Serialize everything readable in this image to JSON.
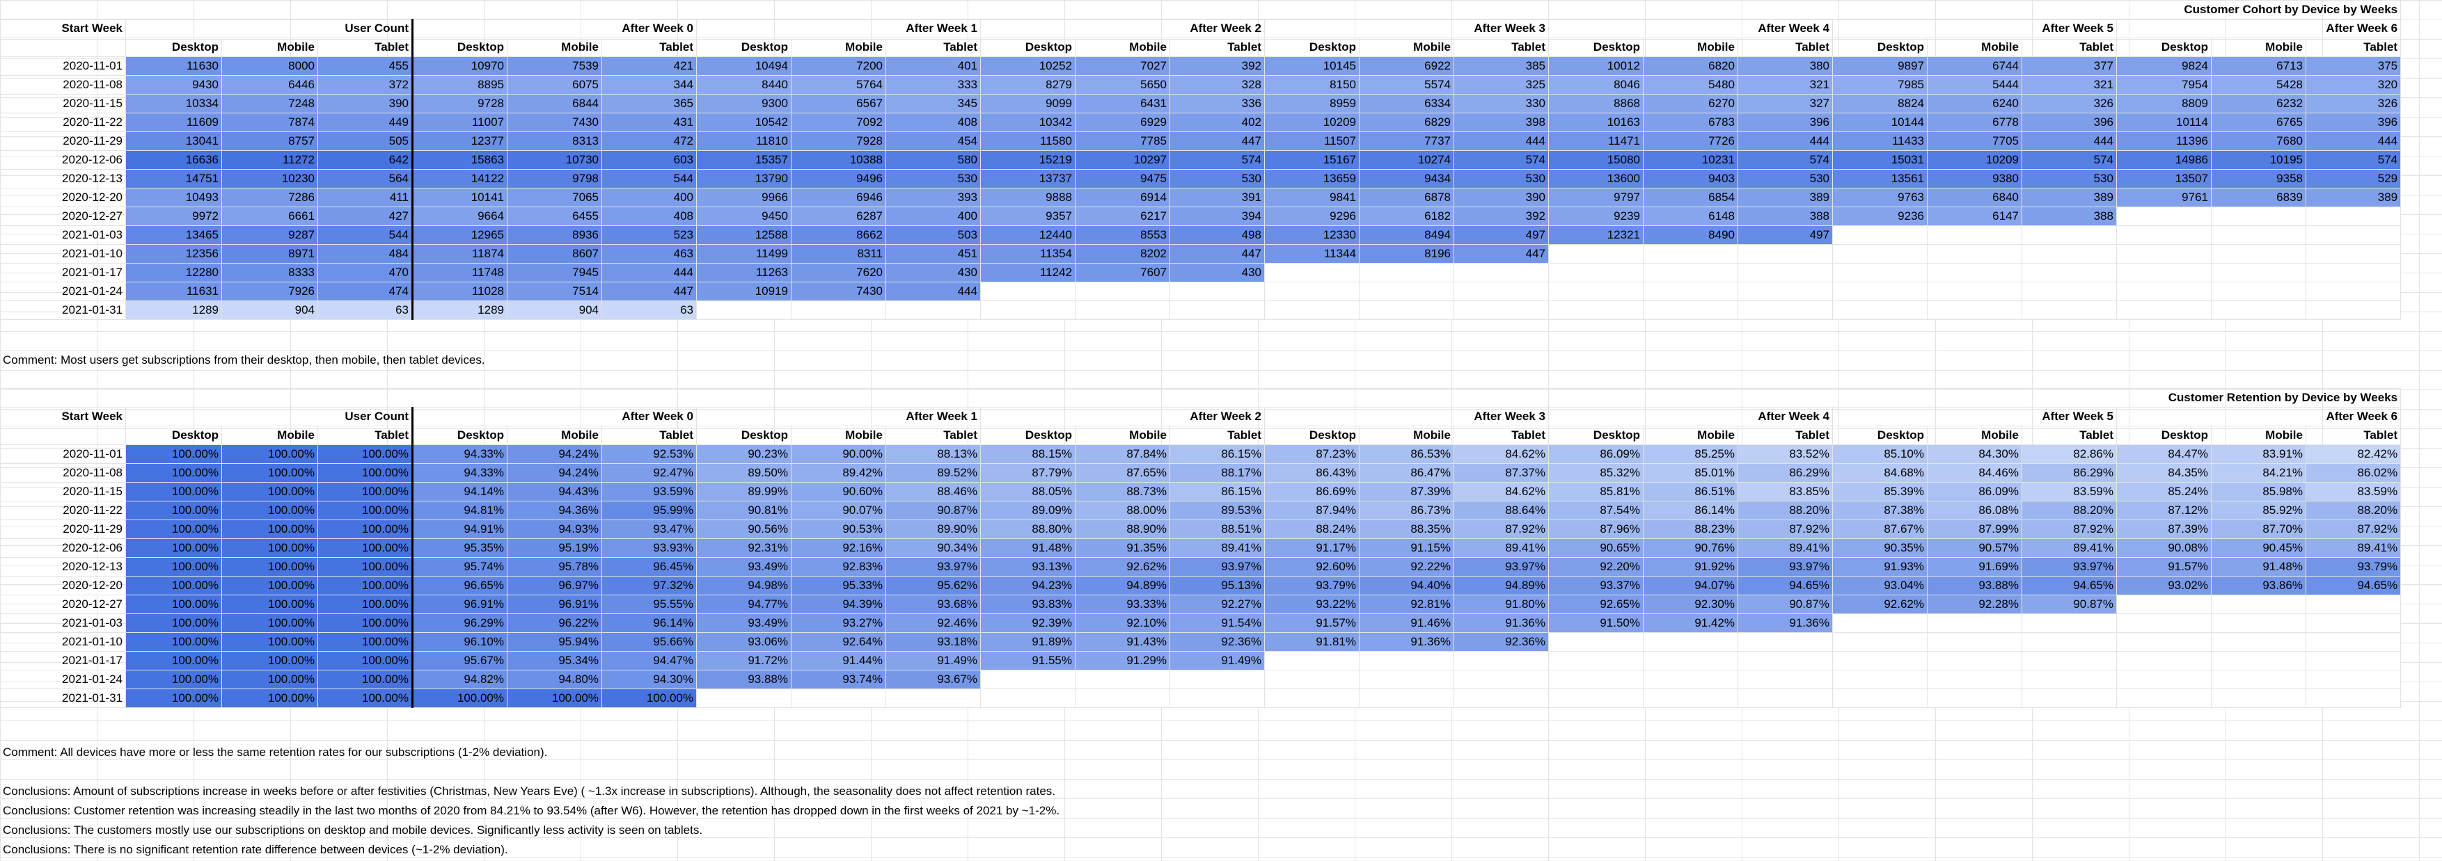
{
  "cohort": {
    "title": "Customer Cohort by Device by Weeks",
    "group_headers": [
      "Start Week",
      "User Count",
      "After Week 0",
      "After Week 1",
      "After Week 2",
      "After Week 3",
      "After Week 4",
      "After Week 5",
      "After Week 6"
    ],
    "device_headers": [
      "Desktop",
      "Mobile",
      "Tablet"
    ],
    "rows": [
      {
        "week": "2020-11-01",
        "values": [
          "11630",
          "8000",
          "455",
          "10970",
          "7539",
          "421",
          "10494",
          "7200",
          "401",
          "10252",
          "7027",
          "392",
          "10145",
          "6922",
          "385",
          "10012",
          "6820",
          "380",
          "9897",
          "6744",
          "377",
          "9824",
          "6713",
          "375"
        ]
      },
      {
        "week": "2020-11-08",
        "values": [
          "9430",
          "6446",
          "372",
          "8895",
          "6075",
          "344",
          "8440",
          "5764",
          "333",
          "8279",
          "5650",
          "328",
          "8150",
          "5574",
          "325",
          "8046",
          "5480",
          "321",
          "7985",
          "5444",
          "321",
          "7954",
          "5428",
          "320"
        ]
      },
      {
        "week": "2020-11-15",
        "values": [
          "10334",
          "7248",
          "390",
          "9728",
          "6844",
          "365",
          "9300",
          "6567",
          "345",
          "9099",
          "6431",
          "336",
          "8959",
          "6334",
          "330",
          "8868",
          "6270",
          "327",
          "8824",
          "6240",
          "326",
          "8809",
          "6232",
          "326"
        ]
      },
      {
        "week": "2020-11-22",
        "values": [
          "11609",
          "7874",
          "449",
          "11007",
          "7430",
          "431",
          "10542",
          "7092",
          "408",
          "10342",
          "6929",
          "402",
          "10209",
          "6829",
          "398",
          "10163",
          "6783",
          "396",
          "10144",
          "6778",
          "396",
          "10114",
          "6765",
          "396"
        ]
      },
      {
        "week": "2020-11-29",
        "values": [
          "13041",
          "8757",
          "505",
          "12377",
          "8313",
          "472",
          "11810",
          "7928",
          "454",
          "11580",
          "7785",
          "447",
          "11507",
          "7737",
          "444",
          "11471",
          "7726",
          "444",
          "11433",
          "7705",
          "444",
          "11396",
          "7680",
          "444"
        ]
      },
      {
        "week": "2020-12-06",
        "values": [
          "16636",
          "11272",
          "642",
          "15863",
          "10730",
          "603",
          "15357",
          "10388",
          "580",
          "15219",
          "10297",
          "574",
          "15167",
          "10274",
          "574",
          "15080",
          "10231",
          "574",
          "15031",
          "10209",
          "574",
          "14986",
          "10195",
          "574"
        ]
      },
      {
        "week": "2020-12-13",
        "values": [
          "14751",
          "10230",
          "564",
          "14122",
          "9798",
          "544",
          "13790",
          "9496",
          "530",
          "13737",
          "9475",
          "530",
          "13659",
          "9434",
          "530",
          "13600",
          "9403",
          "530",
          "13561",
          "9380",
          "530",
          "13507",
          "9358",
          "529"
        ]
      },
      {
        "week": "2020-12-20",
        "values": [
          "10493",
          "7286",
          "411",
          "10141",
          "7065",
          "400",
          "9966",
          "6946",
          "393",
          "9888",
          "6914",
          "391",
          "9841",
          "6878",
          "390",
          "9797",
          "6854",
          "389",
          "9763",
          "6840",
          "389",
          "9761",
          "6839",
          "389"
        ]
      },
      {
        "week": "2020-12-27",
        "values": [
          "9972",
          "6661",
          "427",
          "9664",
          "6455",
          "408",
          "9450",
          "6287",
          "400",
          "9357",
          "6217",
          "394",
          "9296",
          "6182",
          "392",
          "9239",
          "6148",
          "388",
          "9236",
          "6147",
          "388",
          "",
          "",
          ""
        ]
      },
      {
        "week": "2021-01-03",
        "values": [
          "13465",
          "9287",
          "544",
          "12965",
          "8936",
          "523",
          "12588",
          "8662",
          "503",
          "12440",
          "8553",
          "498",
          "12330",
          "8494",
          "497",
          "12321",
          "8490",
          "497",
          "",
          "",
          "",
          "",
          "",
          ""
        ]
      },
      {
        "week": "2021-01-10",
        "values": [
          "12356",
          "8971",
          "484",
          "11874",
          "8607",
          "463",
          "11499",
          "8311",
          "451",
          "11354",
          "8202",
          "447",
          "11344",
          "8196",
          "447",
          "",
          "",
          "",
          "",
          "",
          "",
          "",
          "",
          ""
        ]
      },
      {
        "week": "2021-01-17",
        "values": [
          "12280",
          "8333",
          "470",
          "11748",
          "7945",
          "444",
          "11263",
          "7620",
          "430",
          "11242",
          "7607",
          "430",
          "",
          "",
          "",
          "",
          "",
          "",
          "",
          "",
          "",
          "",
          "",
          ""
        ]
      },
      {
        "week": "2021-01-24",
        "values": [
          "11631",
          "7926",
          "474",
          "11028",
          "7514",
          "447",
          "10919",
          "7430",
          "444",
          "",
          "",
          "",
          "",
          "",
          "",
          "",
          "",
          "",
          "",
          "",
          "",
          "",
          "",
          ""
        ]
      },
      {
        "week": "2021-01-31",
        "values": [
          "1289",
          "904",
          "63",
          "1289",
          "904",
          "63",
          "",
          "",
          "",
          "",
          "",
          "",
          "",
          "",
          "",
          "",
          "",
          "",
          "",
          "",
          "",
          "",
          "",
          ""
        ]
      }
    ],
    "comment": "Comment: Most users get subscriptions from their desktop, then mobile, then tablet devices."
  },
  "retention": {
    "title": "Customer Retention by Device by Weeks",
    "group_headers": [
      "Start Week",
      "User Count",
      "After Week 0",
      "After Week 1",
      "After Week 2",
      "After Week 3",
      "After Week 4",
      "After Week 5",
      "After Week 6"
    ],
    "device_headers": [
      "Desktop",
      "Mobile",
      "Tablet"
    ],
    "rows": [
      {
        "week": "2020-11-01",
        "values": [
          "100.00%",
          "100.00%",
          "100.00%",
          "94.33%",
          "94.24%",
          "92.53%",
          "90.23%",
          "90.00%",
          "88.13%",
          "88.15%",
          "87.84%",
          "86.15%",
          "87.23%",
          "86.53%",
          "84.62%",
          "86.09%",
          "85.25%",
          "83.52%",
          "85.10%",
          "84.30%",
          "82.86%",
          "84.47%",
          "83.91%",
          "82.42%"
        ]
      },
      {
        "week": "2020-11-08",
        "values": [
          "100.00%",
          "100.00%",
          "100.00%",
          "94.33%",
          "94.24%",
          "92.47%",
          "89.50%",
          "89.42%",
          "89.52%",
          "87.79%",
          "87.65%",
          "88.17%",
          "86.43%",
          "86.47%",
          "87.37%",
          "85.32%",
          "85.01%",
          "86.29%",
          "84.68%",
          "84.46%",
          "86.29%",
          "84.35%",
          "84.21%",
          "86.02%"
        ]
      },
      {
        "week": "2020-11-15",
        "values": [
          "100.00%",
          "100.00%",
          "100.00%",
          "94.14%",
          "94.43%",
          "93.59%",
          "89.99%",
          "90.60%",
          "88.46%",
          "88.05%",
          "88.73%",
          "86.15%",
          "86.69%",
          "87.39%",
          "84.62%",
          "85.81%",
          "86.51%",
          "83.85%",
          "85.39%",
          "86.09%",
          "83.59%",
          "85.24%",
          "85.98%",
          "83.59%"
        ]
      },
      {
        "week": "2020-11-22",
        "values": [
          "100.00%",
          "100.00%",
          "100.00%",
          "94.81%",
          "94.36%",
          "95.99%",
          "90.81%",
          "90.07%",
          "90.87%",
          "89.09%",
          "88.00%",
          "89.53%",
          "87.94%",
          "86.73%",
          "88.64%",
          "87.54%",
          "86.14%",
          "88.20%",
          "87.38%",
          "86.08%",
          "88.20%",
          "87.12%",
          "85.92%",
          "88.20%"
        ]
      },
      {
        "week": "2020-11-29",
        "values": [
          "100.00%",
          "100.00%",
          "100.00%",
          "94.91%",
          "94.93%",
          "93.47%",
          "90.56%",
          "90.53%",
          "89.90%",
          "88.80%",
          "88.90%",
          "88.51%",
          "88.24%",
          "88.35%",
          "87.92%",
          "87.96%",
          "88.23%",
          "87.92%",
          "87.67%",
          "87.99%",
          "87.92%",
          "87.39%",
          "87.70%",
          "87.92%"
        ]
      },
      {
        "week": "2020-12-06",
        "values": [
          "100.00%",
          "100.00%",
          "100.00%",
          "95.35%",
          "95.19%",
          "93.93%",
          "92.31%",
          "92.16%",
          "90.34%",
          "91.48%",
          "91.35%",
          "89.41%",
          "91.17%",
          "91.15%",
          "89.41%",
          "90.65%",
          "90.76%",
          "89.41%",
          "90.35%",
          "90.57%",
          "89.41%",
          "90.08%",
          "90.45%",
          "89.41%"
        ]
      },
      {
        "week": "2020-12-13",
        "values": [
          "100.00%",
          "100.00%",
          "100.00%",
          "95.74%",
          "95.78%",
          "96.45%",
          "93.49%",
          "92.83%",
          "93.97%",
          "93.13%",
          "92.62%",
          "93.97%",
          "92.60%",
          "92.22%",
          "93.97%",
          "92.20%",
          "91.92%",
          "93.97%",
          "91.93%",
          "91.69%",
          "93.97%",
          "91.57%",
          "91.48%",
          "93.79%"
        ]
      },
      {
        "week": "2020-12-20",
        "values": [
          "100.00%",
          "100.00%",
          "100.00%",
          "96.65%",
          "96.97%",
          "97.32%",
          "94.98%",
          "95.33%",
          "95.62%",
          "94.23%",
          "94.89%",
          "95.13%",
          "93.79%",
          "94.40%",
          "94.89%",
          "93.37%",
          "94.07%",
          "94.65%",
          "93.04%",
          "93.88%",
          "94.65%",
          "93.02%",
          "93.86%",
          "94.65%"
        ]
      },
      {
        "week": "2020-12-27",
        "values": [
          "100.00%",
          "100.00%",
          "100.00%",
          "96.91%",
          "96.91%",
          "95.55%",
          "94.77%",
          "94.39%",
          "93.68%",
          "93.83%",
          "93.33%",
          "92.27%",
          "93.22%",
          "92.81%",
          "91.80%",
          "92.65%",
          "92.30%",
          "90.87%",
          "92.62%",
          "92.28%",
          "90.87%",
          "",
          "",
          ""
        ]
      },
      {
        "week": "2021-01-03",
        "values": [
          "100.00%",
          "100.00%",
          "100.00%",
          "96.29%",
          "96.22%",
          "96.14%",
          "93.49%",
          "93.27%",
          "92.46%",
          "92.39%",
          "92.10%",
          "91.54%",
          "91.57%",
          "91.46%",
          "91.36%",
          "91.50%",
          "91.42%",
          "91.36%",
          "",
          "",
          "",
          "",
          "",
          ""
        ]
      },
      {
        "week": "2021-01-10",
        "values": [
          "100.00%",
          "100.00%",
          "100.00%",
          "96.10%",
          "95.94%",
          "95.66%",
          "93.06%",
          "92.64%",
          "93.18%",
          "91.89%",
          "91.43%",
          "92.36%",
          "91.81%",
          "91.36%",
          "92.36%",
          "",
          "",
          "",
          "",
          "",
          "",
          "",
          "",
          ""
        ]
      },
      {
        "week": "2021-01-17",
        "values": [
          "100.00%",
          "100.00%",
          "100.00%",
          "95.67%",
          "95.34%",
          "94.47%",
          "91.72%",
          "91.44%",
          "91.49%",
          "91.55%",
          "91.29%",
          "91.49%",
          "",
          "",
          "",
          "",
          "",
          "",
          "",
          "",
          "",
          "",
          "",
          ""
        ]
      },
      {
        "week": "2021-01-24",
        "values": [
          "100.00%",
          "100.00%",
          "100.00%",
          "94.82%",
          "94.80%",
          "94.30%",
          "93.88%",
          "93.74%",
          "93.67%",
          "",
          "",
          "",
          "",
          "",
          "",
          "",
          "",
          "",
          "",
          "",
          "",
          "",
          "",
          ""
        ]
      },
      {
        "week": "2021-01-31",
        "values": [
          "100.00%",
          "100.00%",
          "100.00%",
          "100.00%",
          "100.00%",
          "100.00%",
          "",
          "",
          "",
          "",
          "",
          "",
          "",
          "",
          "",
          "",
          "",
          "",
          "",
          "",
          "",
          "",
          "",
          ""
        ]
      }
    ],
    "comment": "Comment: All devices have more or less the same retention rates for our subscriptions (1-2% deviation)."
  },
  "conclusions": [
    "Conclusions: Amount of subscriptions increase in weeks before or after festivities (Christmas, New Years Eve) ( ~1.3x increase in subscriptions).  Although, the seasonality does not affect retention rates.",
    "Conclusions: Customer retention was increasing steadily in the last two months of 2020 from 84.21% to 93.54% (after W6). However, the retention has dropped down in the first weeks of 2021 by ~1-2%.",
    "Conclusions: The customers mostly use our subscriptions on desktop and mobile devices. Significantly less activity is seen on tablets.",
    "Conclusions: There is no significant retention rate difference between devices (~1-2% deviation)."
  ]
}
